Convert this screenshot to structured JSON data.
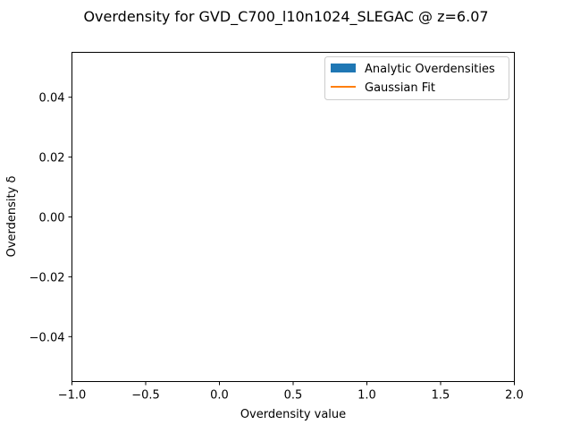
{
  "chart_data": {
    "type": "bar",
    "title": "Overdensity for GVD_C700_l10n1024_SLEGAC @ z=6.07",
    "xlabel": "Overdensity value",
    "ylabel": "Overdensity δ",
    "xlim": [
      -1.0,
      2.0
    ],
    "ylim": [
      -0.055,
      0.055
    ],
    "x_ticks": [
      -1.0,
      -0.5,
      0.0,
      0.5,
      1.0,
      1.5,
      2.0
    ],
    "x_tick_labels": [
      "−1.0",
      "−0.5",
      "0.0",
      "0.5",
      "1.0",
      "1.5",
      "2.0"
    ],
    "y_ticks": [
      0.04,
      0.02,
      0.0,
      -0.02,
      -0.04
    ],
    "y_tick_labels": [
      "0.04",
      "0.02",
      "0.00",
      "−0.02",
      "−0.04"
    ],
    "grid": false,
    "legend_position": "top-right",
    "series": [
      {
        "name": "Analytic Overdensities",
        "kind": "bar",
        "color": "#1f77b4",
        "values": []
      },
      {
        "name": "Gaussian Fit",
        "kind": "line",
        "color": "#ff7f0e",
        "values": []
      }
    ]
  }
}
